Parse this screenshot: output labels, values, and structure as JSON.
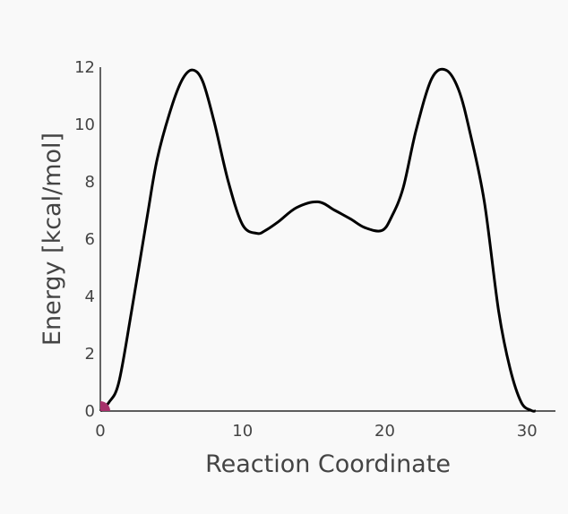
{
  "chart_data": {
    "type": "line",
    "title": "",
    "xlabel": "Reaction Coordinate",
    "ylabel": "Energy [kcal/mol]",
    "xlim": [
      0,
      32
    ],
    "ylim": [
      0,
      12
    ],
    "x_ticks": [
      0,
      10,
      20,
      30
    ],
    "y_ticks": [
      0,
      2,
      4,
      6,
      8,
      10,
      12
    ],
    "x_tick_labels": [
      "0",
      "10",
      "20",
      "30"
    ],
    "y_tick_labels": [
      "0",
      "2",
      "4",
      "6",
      "8",
      "10",
      "12"
    ],
    "grid": false,
    "legend": "none",
    "series": [
      {
        "color": "#000000",
        "x": [
          0,
          0.6,
          1.3,
          2.2,
          3.3,
          4.0,
          5.0,
          5.8,
          6.5,
          7.2,
          8.0,
          9.0,
          10.0,
          11.0,
          11.6,
          12.5,
          13.8,
          15.3,
          16.5,
          17.6,
          18.6,
          19.8,
          20.5,
          21.3,
          22.2,
          23.3,
          24.3,
          25.2,
          26.0,
          27.0,
          28.0,
          28.8,
          29.6,
          30.3,
          30.6
        ],
        "y": [
          0,
          0.3,
          1.0,
          3.5,
          6.8,
          8.8,
          10.6,
          11.6,
          11.9,
          11.5,
          10.1,
          8.0,
          6.5,
          6.2,
          6.3,
          6.6,
          7.1,
          7.3,
          7.0,
          6.7,
          6.4,
          6.3,
          6.8,
          7.8,
          9.8,
          11.6,
          11.9,
          11.2,
          9.7,
          7.3,
          3.5,
          1.5,
          0.3,
          0.02,
          0
        ]
      }
    ],
    "marker": {
      "color": "#a6306a",
      "x": 0,
      "y": 0
    }
  }
}
